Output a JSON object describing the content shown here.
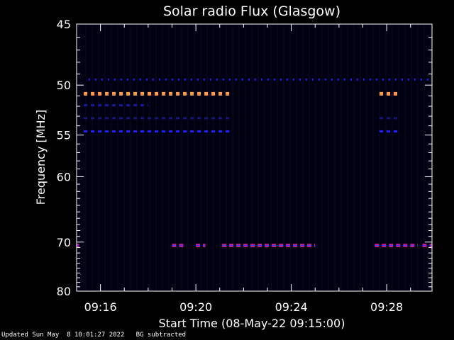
{
  "chart_data": {
    "type": "heatmap",
    "title": "Solar radio Flux (Glasgow)",
    "xlabel": "Start Time (08-May-22 09:15:00)",
    "ylabel": "Frequency [MHz]",
    "x_start_minutes": 0,
    "x_end_minutes": 14.9,
    "x_ticks": [
      {
        "minute": 1,
        "label": "09:16"
      },
      {
        "minute": 5,
        "label": "09:20"
      },
      {
        "minute": 9,
        "label": "09:24"
      },
      {
        "minute": 13,
        "label": "09:28"
      }
    ],
    "y_range_mhz": [
      45,
      80
    ],
    "y_ticks": [
      45,
      50,
      55,
      60,
      70,
      80
    ],
    "y_scale": "reciprocal",
    "background_color": "#000010",
    "bands": [
      {
        "freq_mhz": 49.5,
        "color": "#2020ff",
        "segments": [
          [
            0.5,
            14.9
          ]
        ]
      },
      {
        "freq_mhz": 50.8,
        "color": "#ff9a4a",
        "segments": [
          [
            0.3,
            6.4
          ],
          [
            12.7,
            13.5
          ]
        ]
      },
      {
        "freq_mhz": 51.9,
        "color": "#1a1aa0",
        "segments": [
          [
            0.3,
            3.0
          ]
        ]
      },
      {
        "freq_mhz": 53.2,
        "color": "#15157a",
        "segments": [
          [
            0.3,
            6.4
          ],
          [
            12.7,
            13.5
          ]
        ]
      },
      {
        "freq_mhz": 54.6,
        "color": "#2020ff",
        "segments": [
          [
            0.3,
            6.4
          ],
          [
            12.7,
            13.5
          ]
        ]
      },
      {
        "freq_mhz": 70.6,
        "color": "#c01a8a",
        "segments": [
          [
            0.0,
            0.1
          ],
          [
            4.0,
            4.6
          ],
          [
            5.0,
            5.4
          ],
          [
            6.1,
            10.0
          ],
          [
            12.5,
            14.3
          ],
          [
            14.5,
            14.9
          ]
        ]
      }
    ]
  },
  "footer": {
    "updated": "Updated Sun May  8 10:01:27 2022",
    "note": "BG subtracted"
  }
}
